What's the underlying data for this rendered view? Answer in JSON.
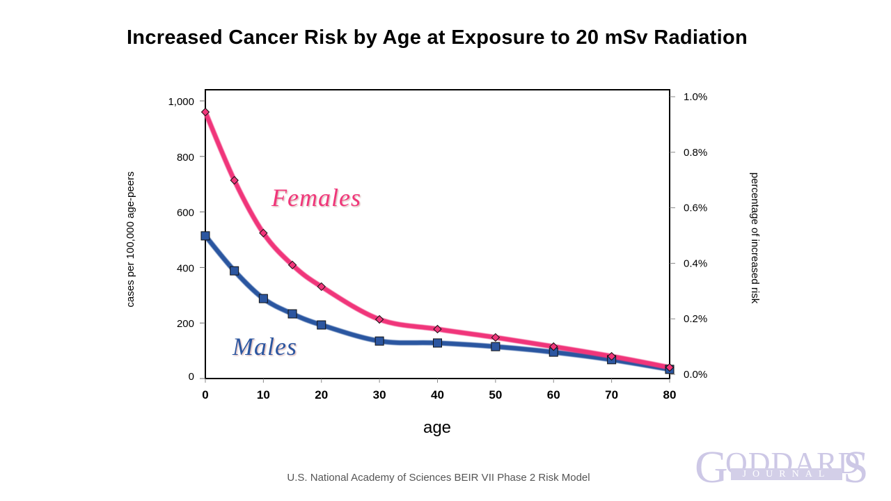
{
  "chart_data": {
    "type": "line",
    "title": "Increased Cancer Risk by Age at Exposure to  20 mSv  Radiation",
    "xlabel": "age",
    "ylabel": "cases per 100,000 age-peers",
    "y2label": "percentage of increased risk",
    "xlim": [
      0,
      80
    ],
    "ylim": [
      0,
      1000
    ],
    "y2lim": [
      0.0,
      1.0
    ],
    "x_ticks": [
      "0",
      "10",
      "20",
      "30",
      "40",
      "50",
      "60",
      "70",
      "80"
    ],
    "y_ticks": [
      "0",
      "200",
      "400",
      "600",
      "800",
      "1,000"
    ],
    "y2_ticks": [
      "0.0%",
      "0.2%",
      "0.4%",
      "0.6%",
      "0.8%",
      "1.0%"
    ],
    "grid": false,
    "x": [
      0,
      5,
      10,
      15,
      20,
      30,
      40,
      50,
      60,
      70,
      80
    ],
    "series": [
      {
        "name": "Females",
        "color": "#f0367a",
        "marker": "diamond",
        "values": [
          960,
          714,
          524,
          409,
          331,
          213,
          178,
          148,
          115,
          80,
          40
        ]
      },
      {
        "name": "Males",
        "color": "#2c56a0",
        "marker": "square",
        "values": [
          514,
          388,
          288,
          233,
          193,
          135,
          128,
          115,
          95,
          68,
          33
        ]
      }
    ],
    "annotations": [
      {
        "text": "Females",
        "series": "Females"
      },
      {
        "text": "Males",
        "series": "Males"
      }
    ]
  },
  "footer": {
    "source": "U.S. National Academy of Sciences BEIR VII Phase 2 Risk Model"
  },
  "logo": {
    "first_letter": "G",
    "main": "ODDARD'",
    "last_letter": "S",
    "subtitle": "JOURNAL"
  }
}
